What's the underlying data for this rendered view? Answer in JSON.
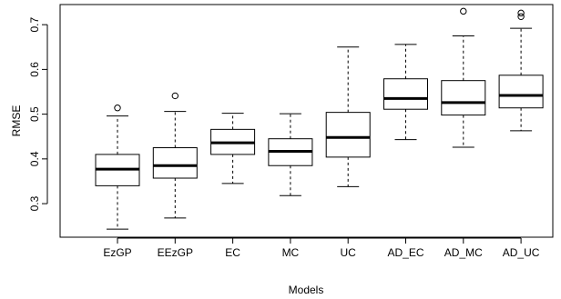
{
  "chart_data": {
    "type": "boxplot",
    "title": "",
    "xlabel": "Models",
    "ylabel": "RMSE",
    "ylim": [
      0.225,
      0.745
    ],
    "yticks": [
      0.3,
      0.4,
      0.5,
      0.6,
      0.7
    ],
    "ytick_labels": [
      "0.3",
      "0.4",
      "0.5",
      "0.6",
      "0.7"
    ],
    "grid": false,
    "legend": "none",
    "categories": [
      "EzGP",
      "EEzGP",
      "EC",
      "MC",
      "UC",
      "AD_EC",
      "AD_MC",
      "AD_UC"
    ],
    "boxes": [
      {
        "name": "EzGP",
        "whisker_low": 0.243,
        "q1": 0.34,
        "median": 0.377,
        "q3": 0.41,
        "whisker_high": 0.496,
        "outliers": [
          0.514
        ]
      },
      {
        "name": "EEzGP",
        "whisker_low": 0.268,
        "q1": 0.357,
        "median": 0.385,
        "q3": 0.425,
        "whisker_high": 0.506,
        "outliers": [
          0.541
        ]
      },
      {
        "name": "EC",
        "whisker_low": 0.345,
        "q1": 0.41,
        "median": 0.436,
        "q3": 0.466,
        "whisker_high": 0.502,
        "outliers": []
      },
      {
        "name": "MC",
        "whisker_low": 0.318,
        "q1": 0.385,
        "median": 0.417,
        "q3": 0.445,
        "whisker_high": 0.501,
        "outliers": []
      },
      {
        "name": "UC",
        "whisker_low": 0.338,
        "q1": 0.404,
        "median": 0.448,
        "q3": 0.504,
        "whisker_high": 0.65,
        "outliers": []
      },
      {
        "name": "AD_EC",
        "whisker_low": 0.443,
        "q1": 0.511,
        "median": 0.535,
        "q3": 0.579,
        "whisker_high": 0.656,
        "outliers": []
      },
      {
        "name": "AD_MC",
        "whisker_low": 0.426,
        "q1": 0.498,
        "median": 0.526,
        "q3": 0.575,
        "whisker_high": 0.675,
        "outliers": [
          0.73
        ]
      },
      {
        "name": "AD_UC",
        "whisker_low": 0.463,
        "q1": 0.514,
        "median": 0.542,
        "q3": 0.587,
        "whisker_high": 0.692,
        "outliers": [
          0.718,
          0.726
        ]
      }
    ]
  }
}
